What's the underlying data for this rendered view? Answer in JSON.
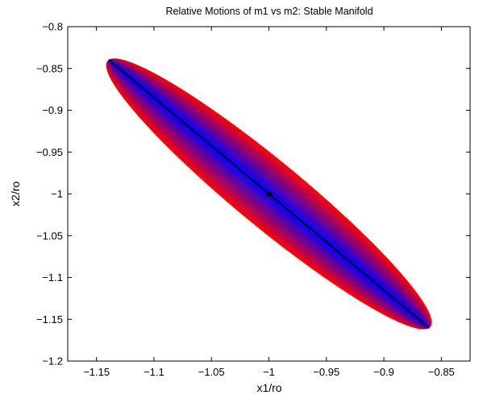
{
  "chart_data": {
    "type": "line",
    "title": "Relative Motions of m1 vs m2: Stable Manifold",
    "xlabel": "x1/ro",
    "ylabel": "x2/ro",
    "xlim": [
      -1.175,
      -0.825
    ],
    "ylim": [
      -1.2,
      -0.8
    ],
    "xticks": [
      -1.15,
      -1.1,
      -1.05,
      -1.0,
      -0.95,
      -0.9,
      -0.85
    ],
    "xtick_labels": [
      "−1.15",
      "−1.1",
      "−1.05",
      "−1",
      "−0.95",
      "−0.9",
      "−0.85"
    ],
    "yticks": [
      -0.8,
      -0.85,
      -0.9,
      -0.95,
      -1.0,
      -1.05,
      -1.1,
      -1.15,
      -1.2
    ],
    "ytick_labels": [
      "−0.8",
      "−0.85",
      "−0.9",
      "−0.95",
      "−1",
      "−1.05",
      "−1.1",
      "−1.15",
      "−1.2"
    ],
    "grid": false,
    "manifold_family": {
      "center": [
        -1.0,
        -1.0
      ],
      "end_a": [
        -1.139,
        -0.84
      ],
      "end_b": [
        -0.861,
        -1.16
      ],
      "max_half_width": 0.0335,
      "curve_count": 60,
      "color_outer": "#ff0000",
      "color_inner": "#0000ff"
    },
    "central_line": {
      "x": [
        -1.139,
        -0.861
      ],
      "y": [
        -0.84,
        -1.16
      ],
      "color": "#000000"
    },
    "equilibrium_point": {
      "x": -1.0,
      "y": -1.0,
      "color": "#000000"
    }
  }
}
